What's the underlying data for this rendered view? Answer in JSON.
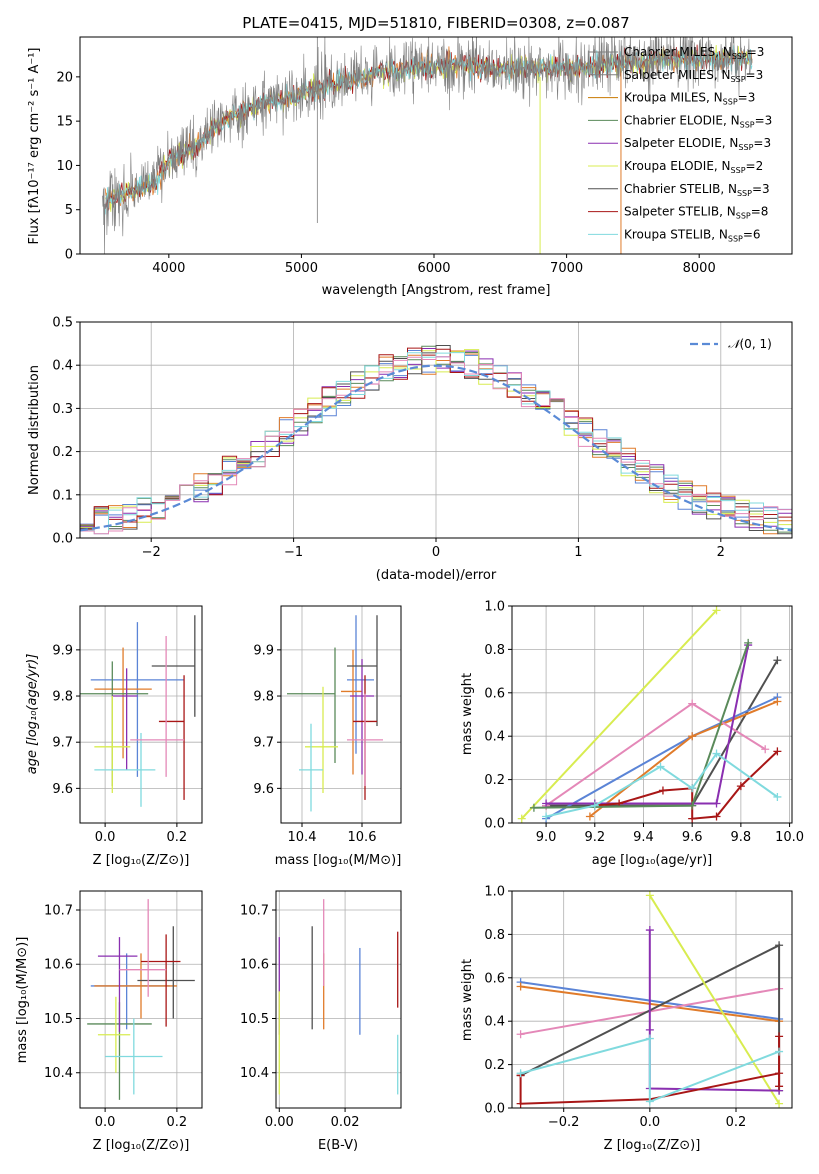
{
  "title": "PLATE=0415, MJD=51810, FIBERID=0308, z=0.087",
  "colors": {
    "chabrier_miles": "#5b84d6",
    "salpeter_miles": "#e07b2a",
    "kroupa_miles": "#c87800",
    "chabrier_elodie": "#5a8a5a",
    "salpeter_elodie": "#8a2fb0",
    "kroupa_elodie": "#d8ec50",
    "chabrier_stelib": "#505050",
    "salpeter_stelib": "#a81616",
    "kroupa_stelib": "#80dade",
    "pink": "#e488b8",
    "gauss": "#5a8ad6",
    "spec_grey": "#7f7f7f"
  },
  "panels": {
    "spectrum": {
      "xlabel": "wavelength [Angstrom, rest frame]",
      "ylabel": "Flux [f",
      "xticks": [
        "4000",
        "5000",
        "6000",
        "7000",
        "8000"
      ],
      "yticks": [
        "0",
        "5",
        "10",
        "15",
        "20"
      ],
      "legend": [
        {
          "name": "Chabrier MILES, N",
          "n": "=3",
          "color": "#7f7f7f"
        },
        {
          "name": "Salpeter MILES, N",
          "n": "=3",
          "color": "#7f7f7f"
        },
        {
          "name": "Kroupa MILES, N",
          "n": "=3",
          "color": "#c87800"
        },
        {
          "name": "Chabrier ELODIE, N",
          "n": "=3",
          "color": "#5a8a5a"
        },
        {
          "name": "Salpeter ELODIE, N",
          "n": "=3",
          "color": "#8a2fb0"
        },
        {
          "name": "Kroupa ELODIE, N",
          "n": "=2",
          "color": "#d8ec50"
        },
        {
          "name": "Chabrier STELIB, N",
          "n": "=3",
          "color": "#505050"
        },
        {
          "name": "Salpeter STELIB, N",
          "n": "=8",
          "color": "#a81616"
        },
        {
          "name": "Kroupa STELIB, N",
          "n": "=6",
          "color": "#80dade"
        }
      ]
    },
    "hist": {
      "xlabel": "(data-model)/error",
      "ylabel": "Normed distribution",
      "xticks": [
        "−2",
        "−1",
        "0",
        "1",
        "2"
      ],
      "yticks": [
        "0.0",
        "0.1",
        "0.2",
        "0.3",
        "0.4",
        "0.5"
      ],
      "legend_label": "(0, 1)"
    },
    "age_z": {
      "xlabel": "Z [log",
      "ylabel": "age  [log",
      "xticks": [
        "0.0",
        "0.2"
      ],
      "yticks": [
        "9.6",
        "9.7",
        "9.8",
        "9.9"
      ]
    },
    "age_mass": {
      "xlabel": "mass [log",
      "xticks": [
        "10.4",
        "10.6"
      ],
      "yticks": [
        "9.6",
        "9.7",
        "9.8",
        "9.9"
      ]
    },
    "mw_age": {
      "xlabel": "age  [log",
      "ylabel": "mass weight",
      "xticks": [
        "9.0",
        "9.2",
        "9.4",
        "9.6",
        "9.8",
        "10.0"
      ],
      "yticks": [
        "0.0",
        "0.2",
        "0.4",
        "0.6",
        "0.8",
        "1.0"
      ]
    },
    "mass_z": {
      "xlabel": "Z [log",
      "ylabel": "mass [log",
      "xticks": [
        "0.0",
        "0.2"
      ],
      "yticks": [
        "10.4",
        "10.5",
        "10.6",
        "10.7"
      ]
    },
    "mass_ebv": {
      "xlabel": "E(B-V)",
      "xticks": [
        "0.00",
        "0.02"
      ],
      "yticks": [
        "10.4",
        "10.5",
        "10.6",
        "10.7"
      ]
    },
    "mw_z": {
      "xlabel": "Z [log",
      "ylabel": "mass weight",
      "xticks": [
        "−0.2",
        "0.0",
        "0.2"
      ],
      "yticks": [
        "0.0",
        "0.2",
        "0.4",
        "0.6",
        "0.8",
        "1.0"
      ]
    }
  },
  "chart_data": [
    {
      "type": "line",
      "title": "PLATE=0415, MJD=51810, FIBERID=0308, z=0.087",
      "xlabel": "wavelength [Angstrom, rest frame]",
      "ylabel": "Flux [f_λ 10^-17 erg cm^-2 s^-1 A^-1]",
      "xlim": [
        3330,
        8700
      ],
      "ylim": [
        0,
        24.5
      ],
      "continuum": [
        [
          3500,
          6
        ],
        [
          3700,
          7
        ],
        [
          3900,
          8
        ],
        [
          4000,
          10.5
        ],
        [
          4200,
          12
        ],
        [
          4400,
          15
        ],
        [
          4700,
          17
        ],
        [
          5000,
          18
        ],
        [
          5300,
          19.5
        ],
        [
          5600,
          20.5
        ],
        [
          5900,
          21
        ],
        [
          6200,
          21.5
        ],
        [
          6500,
          21
        ],
        [
          6800,
          21
        ],
        [
          7100,
          21
        ],
        [
          7400,
          21.5
        ],
        [
          7700,
          22
        ],
        [
          8000,
          22
        ],
        [
          8300,
          22
        ]
      ],
      "series": [
        "Chabrier MILES",
        "Salpeter MILES",
        "Kroupa MILES",
        "Chabrier ELODIE",
        "Salpeter ELODIE",
        "Kroupa ELODIE",
        "Chabrier STELIB",
        "Salpeter STELIB",
        "Kroupa STELIB"
      ]
    },
    {
      "type": "area",
      "xlabel": "(data-model)/error",
      "ylabel": "Normed distribution",
      "xlim": [
        -2.5,
        2.5
      ],
      "ylim": [
        0,
        0.5
      ],
      "bin_width": 0.1,
      "gaussian": "N(0,1)"
    },
    {
      "type": "scatter",
      "xlabel": "Z [log10(Z/Z⊙)]",
      "ylabel": "age [log10(age/yr)]",
      "xlim": [
        -0.07,
        0.27
      ],
      "ylim": [
        9.525,
        9.995
      ],
      "points": [
        {
          "x": 0.09,
          "y": 9.835,
          "xerr": [
            0.13,
            0.13
          ],
          "yerr": [
            0.21,
            0.125
          ],
          "color": "#5b84d6"
        },
        {
          "x": 0.05,
          "y": 9.815,
          "xerr": [
            0.08,
            0.08
          ],
          "yerr": [
            0.15,
            0.09
          ],
          "color": "#e07b2a"
        },
        {
          "x": 0.02,
          "y": 9.805,
          "xerr": [
            0.1,
            0.1
          ],
          "yerr": [
            0.2,
            0.07
          ],
          "color": "#5a8a5a"
        },
        {
          "x": 0.06,
          "y": 9.8,
          "xerr": [
            0.04,
            0.03
          ],
          "yerr": [
            0.16,
            0.06
          ],
          "color": "#8a2fb0"
        },
        {
          "x": 0.02,
          "y": 9.69,
          "xerr": [
            0.05,
            0.05
          ],
          "yerr": [
            0.1,
            0.11
          ],
          "color": "#d8ec50"
        },
        {
          "x": 0.25,
          "y": 9.865,
          "xerr": [
            0.12,
            0.0
          ],
          "yerr": [
            0.11,
            0.11
          ],
          "color": "#505050"
        },
        {
          "x": 0.22,
          "y": 9.745,
          "xerr": [
            0.07,
            0.0
          ],
          "yerr": [
            0.17,
            0.1
          ],
          "color": "#a81616"
        },
        {
          "x": 0.1,
          "y": 9.64,
          "xerr": [
            0.13,
            0.04
          ],
          "yerr": [
            0.08,
            0.08
          ],
          "color": "#80dade"
        },
        {
          "x": 0.17,
          "y": 9.705,
          "xerr": [
            0.1,
            0.05
          ],
          "yerr": [
            0.08,
            0.225
          ],
          "color": "#e488b8"
        }
      ]
    },
    {
      "type": "scatter",
      "xlabel": "mass [log10(M/M⊙)]",
      "ylabel": "age [log10(age/yr)]",
      "xlim": [
        10.33,
        10.73
      ],
      "ylim": [
        9.525,
        9.995
      ],
      "points": [
        {
          "x": 10.58,
          "y": 9.835,
          "xerr": [
            0.03,
            0.06
          ],
          "yerr": [
            0.16,
            0.14
          ],
          "color": "#5b84d6"
        },
        {
          "x": 10.57,
          "y": 9.81,
          "xerr": [
            0.04,
            0.03
          ],
          "yerr": [
            0.18,
            0.09
          ],
          "color": "#e07b2a"
        },
        {
          "x": 10.51,
          "y": 9.805,
          "xerr": [
            0.16,
            0.0
          ],
          "yerr": [
            0.15,
            0.1
          ],
          "color": "#5a8a5a"
        },
        {
          "x": 10.6,
          "y": 9.8,
          "xerr": [
            0.04,
            0.04
          ],
          "yerr": [
            0.17,
            0.08
          ],
          "color": "#8a2fb0"
        },
        {
          "x": 10.47,
          "y": 9.69,
          "xerr": [
            0.06,
            0.05
          ],
          "yerr": [
            0.1,
            0.13
          ],
          "color": "#d8ec50"
        },
        {
          "x": 10.65,
          "y": 9.865,
          "xerr": [
            0.1,
            0.0
          ],
          "yerr": [
            0.13,
            0.11
          ],
          "color": "#505050"
        },
        {
          "x": 10.61,
          "y": 9.745,
          "xerr": [
            0.04,
            0.04
          ],
          "yerr": [
            0.17,
            0.1
          ],
          "color": "#a81616"
        },
        {
          "x": 10.43,
          "y": 9.64,
          "xerr": [
            0.04,
            0.04
          ],
          "yerr": [
            0.09,
            0.1
          ],
          "color": "#80dade"
        },
        {
          "x": 10.61,
          "y": 9.705,
          "xerr": [
            0.06,
            0.06
          ],
          "yerr": [
            0.1,
            0.1
          ],
          "color": "#e488b8"
        }
      ]
    },
    {
      "type": "line",
      "xlabel": "age [log10(age/yr)]",
      "ylabel": "mass weight",
      "xlim": [
        8.86,
        10.01
      ],
      "ylim": [
        0,
        1.0
      ],
      "series": [
        {
          "color": "#d8ec50",
          "x": [
            8.9,
            9.7
          ],
          "y": [
            0.02,
            0.98
          ]
        },
        {
          "color": "#505050",
          "x": [
            9.0,
            9.6,
            9.95
          ],
          "y": [
            0.08,
            0.08,
            0.75
          ]
        },
        {
          "color": "#5b84d6",
          "x": [
            9.0,
            9.6,
            9.95
          ],
          "y": [
            0.02,
            0.4,
            0.58
          ]
        },
        {
          "color": "#e07b2a",
          "x": [
            9.18,
            9.6,
            9.95
          ],
          "y": [
            0.03,
            0.4,
            0.56
          ]
        },
        {
          "color": "#e488b8",
          "x": [
            9.0,
            9.6,
            9.9
          ],
          "y": [
            0.08,
            0.55,
            0.34
          ]
        },
        {
          "color": "#8a2fb0",
          "x": [
            9.0,
            9.2,
            9.7,
            9.83
          ],
          "y": [
            0.09,
            0.09,
            0.09,
            0.82
          ]
        },
        {
          "color": "#a81616",
          "x": [
            9.2,
            9.3,
            9.48,
            9.6,
            9.6,
            9.7,
            9.8,
            9.95
          ],
          "y": [
            0.08,
            0.09,
            0.15,
            0.16,
            0.02,
            0.03,
            0.17,
            0.33
          ]
        },
        {
          "color": "#5a8a5a",
          "x": [
            8.95,
            9.6,
            9.83
          ],
          "y": [
            0.07,
            0.08,
            0.83
          ]
        },
        {
          "color": "#80dade",
          "x": [
            9.0,
            9.2,
            9.47,
            9.6,
            9.7,
            9.95
          ],
          "y": [
            0.03,
            0.08,
            0.26,
            0.16,
            0.32,
            0.12
          ]
        }
      ]
    },
    {
      "type": "scatter",
      "xlabel": "Z [log10(Z/Z⊙)]",
      "ylabel": "mass [log10(M/M⊙)]",
      "xlim": [
        -0.07,
        0.27
      ],
      "ylim": [
        10.335,
        10.735
      ],
      "points": [
        {
          "x": 0.06,
          "y": 10.56,
          "xerr": [
            0.1,
            0.12
          ],
          "yerr": [
            0.08,
            0.06
          ],
          "color": "#5b84d6"
        },
        {
          "x": 0.1,
          "y": 10.56,
          "xerr": [
            0.13,
            0.1
          ],
          "yerr": [
            0.06,
            0.06
          ],
          "color": "#e07b2a"
        },
        {
          "x": 0.04,
          "y": 10.49,
          "xerr": [
            0.09,
            0.09
          ],
          "yerr": [
            0.14,
            0.04
          ],
          "color": "#5a8a5a"
        },
        {
          "x": 0.04,
          "y": 10.615,
          "xerr": [
            0.06,
            0.05
          ],
          "yerr": [
            0.14,
            0.035
          ],
          "color": "#8a2fb0"
        },
        {
          "x": 0.03,
          "y": 10.47,
          "xerr": [
            0.05,
            0.04
          ],
          "yerr": [
            0.07,
            0.07
          ],
          "color": "#d8ec50"
        },
        {
          "x": 0.19,
          "y": 10.57,
          "xerr": [
            0.1,
            0.06
          ],
          "yerr": [
            0.07,
            0.1
          ],
          "color": "#505050"
        },
        {
          "x": 0.17,
          "y": 10.605,
          "xerr": [
            0.07,
            0.04
          ],
          "yerr": [
            0.12,
            0.05
          ],
          "color": "#a81616"
        },
        {
          "x": 0.08,
          "y": 10.43,
          "xerr": [
            0.08,
            0.08
          ],
          "yerr": [
            0.07,
            0.07
          ],
          "color": "#80dade"
        },
        {
          "x": 0.12,
          "y": 10.59,
          "xerr": [
            0.08,
            0.05
          ],
          "yerr": [
            0.05,
            0.13
          ],
          "color": "#e488b8"
        }
      ]
    },
    {
      "type": "scatter",
      "xlabel": "E(B-V)",
      "ylabel": "mass [log10(M/M⊙)]",
      "xlim": [
        -0.001,
        0.037
      ],
      "ylim": [
        10.335,
        10.735
      ],
      "points": [
        {
          "x": 0.0,
          "y": 10.58,
          "yerr": [
            0.11,
            0.07
          ],
          "color": "#8a2fb0"
        },
        {
          "x": 0.0,
          "y": 10.47,
          "yerr": [
            0.11,
            0.08
          ],
          "color": "#d8ec50"
        },
        {
          "x": 0.01,
          "y": 10.57,
          "yerr": [
            0.09,
            0.1
          ],
          "color": "#505050"
        },
        {
          "x": 0.0135,
          "y": 10.55,
          "yerr": [
            0.07,
            0.07
          ],
          "color": "#e07b2a"
        },
        {
          "x": 0.0135,
          "y": 10.63,
          "yerr": [
            0.07,
            0.09
          ],
          "color": "#e488b8"
        },
        {
          "x": 0.0245,
          "y": 10.55,
          "yerr": [
            0.08,
            0.08
          ],
          "color": "#5b84d6"
        },
        {
          "x": 0.036,
          "y": 10.59,
          "yerr": [
            0.07,
            0.07
          ],
          "color": "#a81616"
        },
        {
          "x": 0.036,
          "y": 10.41,
          "yerr": [
            0.05,
            0.06
          ],
          "color": "#80dade"
        }
      ]
    },
    {
      "type": "line",
      "xlabel": "Z [log10(Z/Z⊙)]",
      "ylabel": "mass weight",
      "xlim": [
        -0.32,
        0.33
      ],
      "ylim": [
        0,
        1.0
      ],
      "series": [
        {
          "color": "#5b84d6",
          "x": [
            -0.3,
            0.3
          ],
          "y": [
            0.58,
            0.41
          ]
        },
        {
          "color": "#e07b2a",
          "x": [
            -0.3,
            0.3
          ],
          "y": [
            0.56,
            0.4
          ]
        },
        {
          "color": "#e488b8",
          "x": [
            -0.3,
            0.3
          ],
          "y": [
            0.34,
            0.55
          ]
        },
        {
          "color": "#505050",
          "x": [
            -0.3,
            0.3,
            0.3
          ],
          "y": [
            0.15,
            0.75,
            0.08
          ]
        },
        {
          "color": "#d8ec50",
          "x": [
            0.0,
            0.3
          ],
          "y": [
            0.98,
            0.02
          ]
        },
        {
          "color": "#8a2fb0",
          "x": [
            0.0,
            0.0,
            0.0,
            0.3
          ],
          "y": [
            0.82,
            0.36,
            0.09,
            0.08
          ]
        },
        {
          "color": "#a81616",
          "x": [
            -0.3,
            -0.3,
            0.0,
            0.3,
            0.3,
            0.3
          ],
          "y": [
            0.15,
            0.02,
            0.04,
            0.16,
            0.33,
            0.1
          ]
        },
        {
          "color": "#80dade",
          "x": [
            -0.3,
            0.0,
            0.0,
            0.3
          ],
          "y": [
            0.16,
            0.32,
            0.03,
            0.26
          ]
        }
      ]
    }
  ]
}
